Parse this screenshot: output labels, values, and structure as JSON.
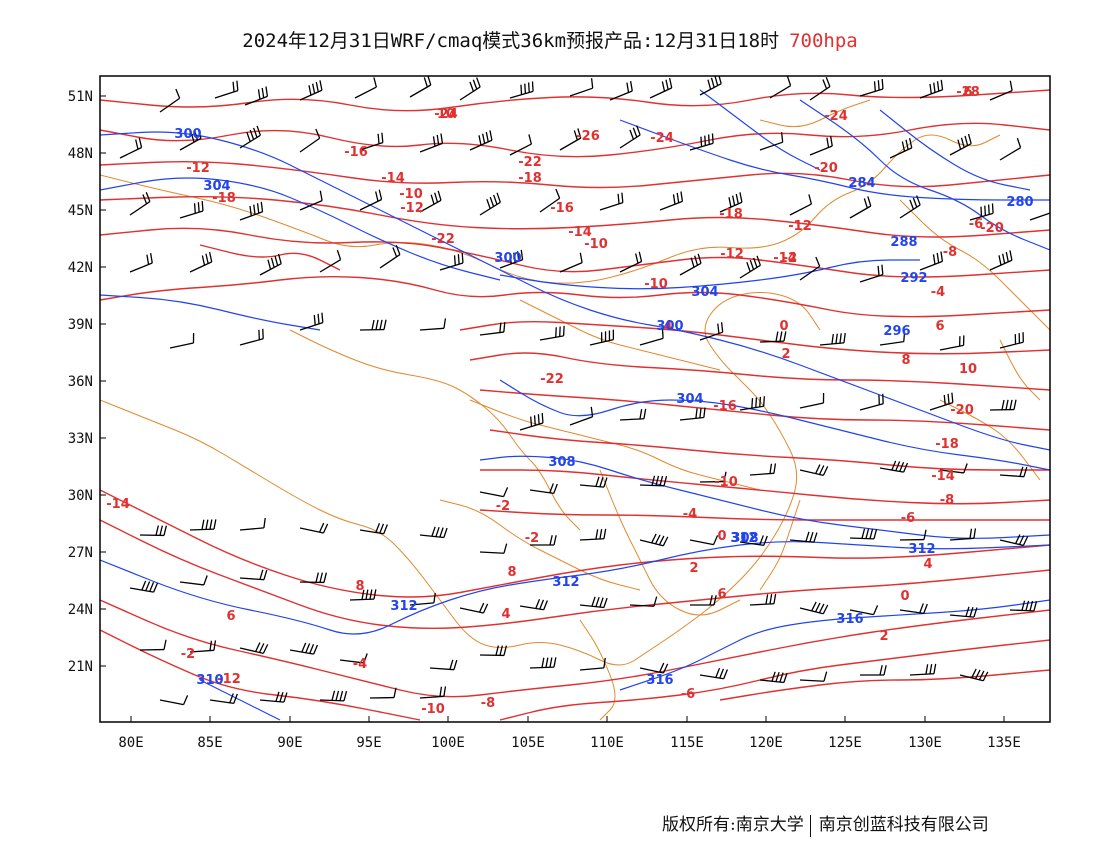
{
  "title": {
    "main": "2024年12月31日WRF/cmaq模式36km预报产品:12月31日18时",
    "level": "700hpa"
  },
  "axes": {
    "lon_labels": [
      "80E",
      "85E",
      "90E",
      "95E",
      "100E",
      "105E",
      "110E",
      "115E",
      "120E",
      "125E",
      "130E",
      "135E"
    ],
    "lat_labels": [
      "51N",
      "48N",
      "45N",
      "42N",
      "39N",
      "36N",
      "33N",
      "30N",
      "27N",
      "24N",
      "21N"
    ]
  },
  "legend_colors": {
    "temperature": "#e03030",
    "height": "#2244ee",
    "boundary": "#e08a30",
    "barb": "#000000"
  },
  "temperature_labels": [
    "-28",
    "-24",
    "-26",
    "-24",
    "-24",
    "-22",
    "-20",
    "-18",
    "-16",
    "-14",
    "-12",
    "-10",
    "-12",
    "-18",
    "-16",
    "-14",
    "-10",
    "-22",
    "-20",
    "-18",
    "-12",
    "-12",
    "-14",
    "-10",
    "-8",
    "-6",
    "-4",
    "-2",
    "0",
    "2",
    "4",
    "6",
    "8",
    "10",
    "-20",
    "-22",
    "-18",
    "-16",
    "-14",
    "-10",
    "-8",
    "-6",
    "-4",
    "-2",
    "0",
    "-2",
    "4",
    "2",
    "8",
    "6",
    "8",
    "6",
    "4",
    "2",
    "0",
    "-2",
    "-4",
    "-6",
    "-8",
    "-10",
    "-12",
    "-14",
    "6",
    "10"
  ],
  "height_labels": [
    "300",
    "304",
    "300",
    "304",
    "300",
    "304",
    "308",
    "308",
    "312",
    "312",
    "312",
    "316",
    "316",
    "312",
    "296",
    "292",
    "288",
    "284",
    "280",
    "310"
  ],
  "credit": {
    "left": "版权所有:南京大学",
    "right": "南京创蓝科技有限公司"
  }
}
